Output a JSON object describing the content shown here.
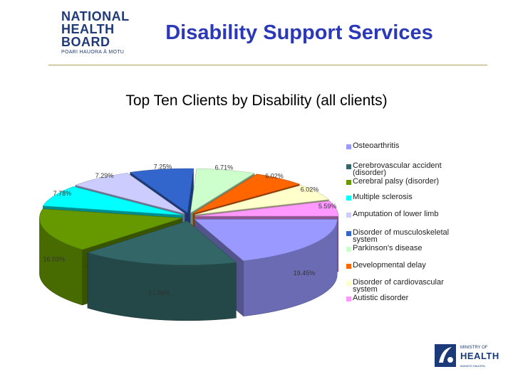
{
  "header": {
    "logo_lines": [
      "NATIONAL",
      "HEALTH",
      "BOARD"
    ],
    "logo_subtitle": "POARI HAUORA Ā MOTU",
    "title": "Disability Support Services"
  },
  "footer": {
    "ministry_small": "MINISTRY OF",
    "ministry_big": "HEALTH",
    "ministry_tag": "MANATŪ HAUORA"
  },
  "chart_data": {
    "type": "pie",
    "title": "Top Ten Clients by Disability (all clients)",
    "categories": [
      "Osteoarthritis",
      "Cerebrovascular accident (disorder)",
      "Cerebral palsy (disorder)",
      "Multiple sclerosis",
      "Amputation of lower limb",
      "Disorder of musculoskeletal system",
      "Parkinson's disease",
      "Developmental delay",
      "Disorder of cardiovascular system",
      "Autistic disorder"
    ],
    "values": [
      19.45,
      17.89,
      16.03,
      7.78,
      7.29,
      7.25,
      6.71,
      6.02,
      6.02,
      5.59
    ],
    "labels": [
      "19.45%",
      "17.89%",
      "16.03%",
      "7.78%",
      "7.29%",
      "7.25%",
      "6.71%",
      "6.02%",
      "6.02%",
      "5.59%"
    ],
    "colors": [
      "#9999ff",
      "#336666",
      "#669900",
      "#00ffff",
      "#ccccff",
      "#3366cc",
      "#ccffcc",
      "#ff6600",
      "#ffffcc",
      "#ff99ff"
    ],
    "legend_position": "right",
    "style": "3d-exploded"
  }
}
